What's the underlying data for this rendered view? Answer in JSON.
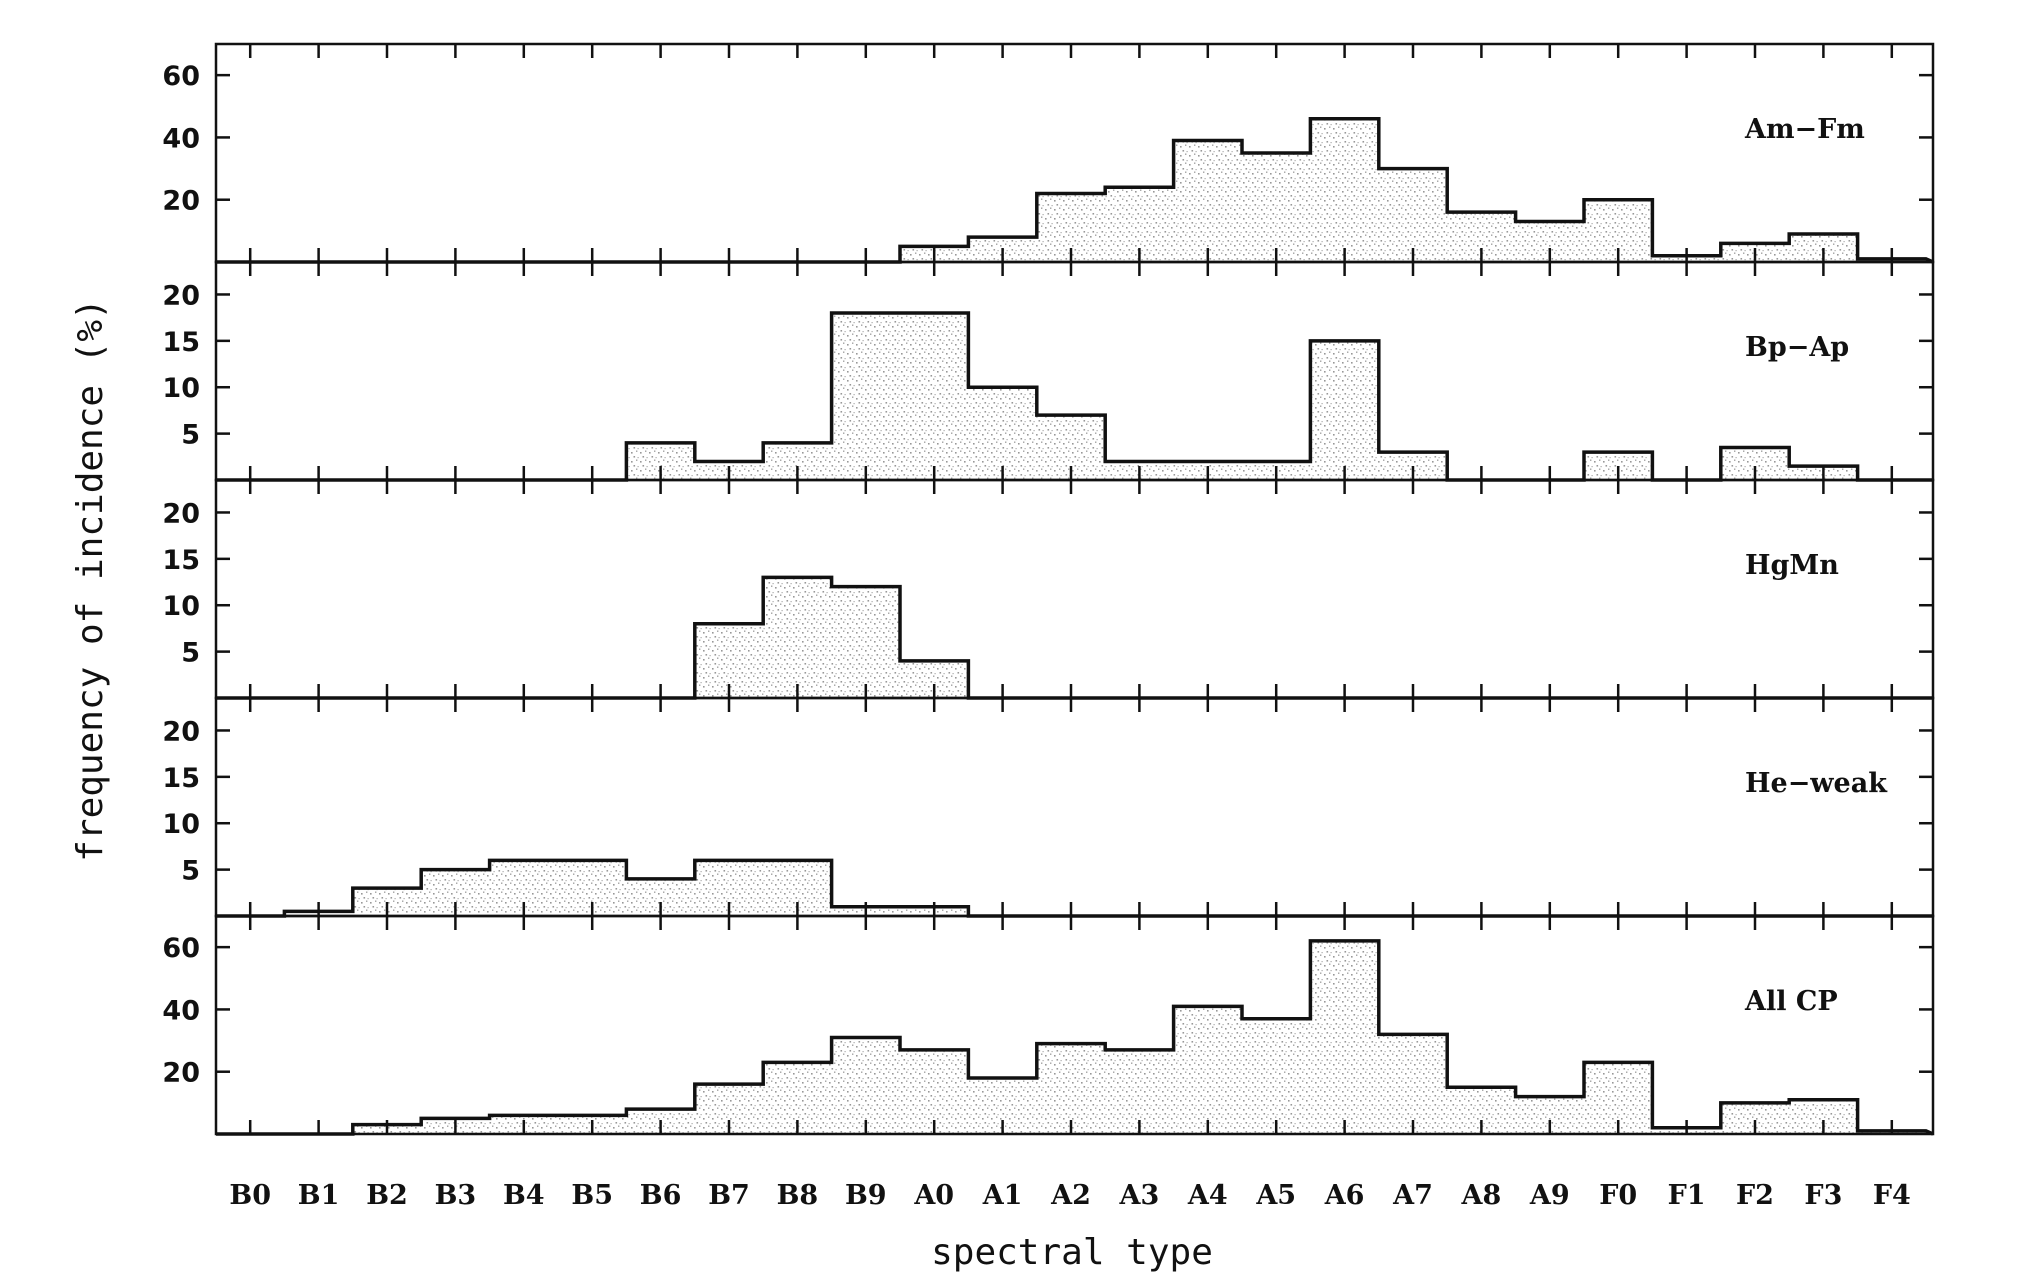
{
  "chart_data": {
    "type": "bar",
    "style": "stacked-panel step histograms with stippled shading",
    "xlabel": "spectral type",
    "ylabel": "frequency of incidence (%)",
    "categories": [
      "B0",
      "B1",
      "B2",
      "B3",
      "B4",
      "B5",
      "B6",
      "B7",
      "B8",
      "B9",
      "A0",
      "A1",
      "A2",
      "A3",
      "A4",
      "A5",
      "A6",
      "A7",
      "A8",
      "A9",
      "F0",
      "F1",
      "F2",
      "F3",
      "F4"
    ],
    "grid": false,
    "legend": "panel labels at right inside each panel",
    "panels": [
      {
        "label": "Am−Fm",
        "ylim": [
          0,
          70
        ],
        "yticks": [
          20,
          40,
          60
        ],
        "values": [
          0,
          0,
          0,
          0,
          0,
          0,
          0,
          0,
          0,
          0,
          5,
          8,
          22,
          24,
          39,
          35,
          46,
          30,
          16,
          13,
          20,
          2,
          6,
          9,
          1
        ]
      },
      {
        "label": "Bp−Ap",
        "ylim": [
          0,
          23.5
        ],
        "yticks": [
          5,
          10,
          15,
          20
        ],
        "values": [
          0,
          0,
          0,
          0,
          0,
          0,
          4,
          2,
          4,
          18,
          18,
          10,
          7,
          2,
          2,
          2,
          15,
          3,
          0,
          0,
          3,
          0,
          3.5,
          1.5,
          0
        ]
      },
      {
        "label": "HgMn",
        "ylim": [
          0,
          23.5
        ],
        "yticks": [
          5,
          10,
          15,
          20
        ],
        "values": [
          0,
          0,
          0,
          0,
          0,
          0,
          0,
          8,
          13,
          12,
          4,
          0,
          0,
          0,
          0,
          0,
          0,
          0,
          0,
          0,
          0,
          0,
          0,
          0,
          0
        ]
      },
      {
        "label": "He−weak",
        "ylim": [
          0,
          23.5
        ],
        "yticks": [
          5,
          10,
          15,
          20
        ],
        "values": [
          0,
          0.5,
          3,
          5,
          6,
          6,
          4,
          6,
          6,
          1,
          1,
          0,
          0,
          0,
          0,
          0,
          0,
          0,
          0,
          0,
          0,
          0,
          0,
          0,
          0
        ]
      },
      {
        "label": "All CP",
        "ylim": [
          0,
          70
        ],
        "yticks": [
          20,
          40,
          60
        ],
        "values": [
          0,
          0,
          3,
          5,
          6,
          6,
          8,
          16,
          23,
          31,
          27,
          18,
          29,
          27,
          41,
          37,
          62,
          32,
          15,
          12,
          23,
          2,
          10,
          11,
          1
        ]
      }
    ]
  }
}
